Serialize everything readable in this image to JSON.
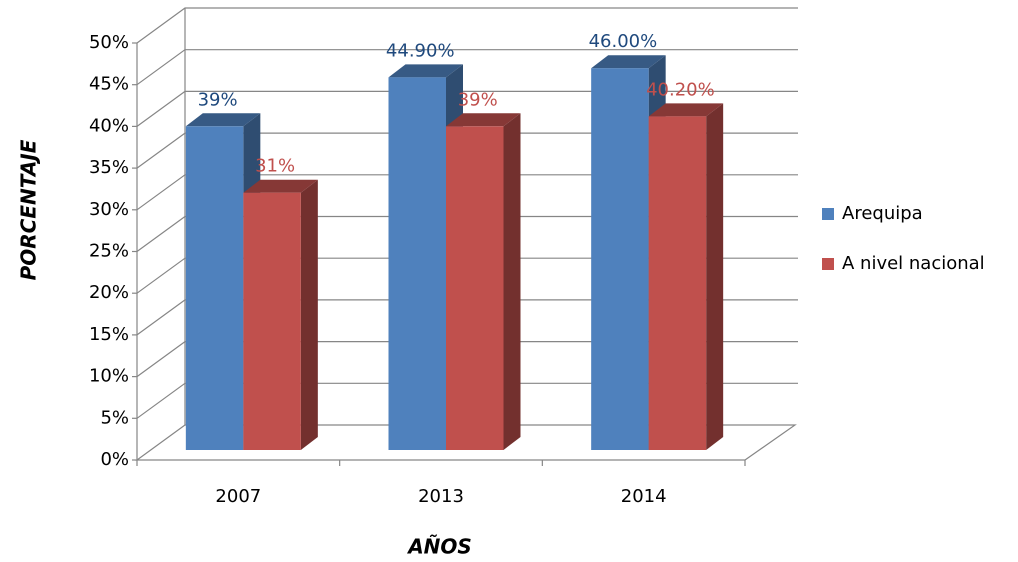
{
  "chart_data": {
    "type": "bar3d",
    "categories": [
      "2007",
      "2013",
      "2014"
    ],
    "series": [
      {
        "name": "Arequipa",
        "color": "#4f81bd",
        "values": [
          39,
          44.9,
          46
        ],
        "value_labels": [
          "39%",
          "44.90%",
          "46.00%"
        ],
        "label_color": "#1f497d"
      },
      {
        "name": "A nivel nacional",
        "color": "#c0504d",
        "values": [
          31,
          39,
          40.2
        ],
        "value_labels": [
          "31%",
          "39%",
          "40.20%"
        ],
        "label_color": "#c0504d"
      }
    ],
    "ylim": [
      0,
      50
    ],
    "yticks": [
      {
        "value": 0,
        "label": "0%"
      },
      {
        "value": 5,
        "label": "5%"
      },
      {
        "value": 10,
        "label": "10%"
      },
      {
        "value": 15,
        "label": "15%"
      },
      {
        "value": 20,
        "label": "20%"
      },
      {
        "value": 25,
        "label": "25%"
      },
      {
        "value": 30,
        "label": "30%"
      },
      {
        "value": 35,
        "label": "35%"
      },
      {
        "value": 40,
        "label": "40%"
      },
      {
        "value": 45,
        "label": "45%"
      },
      {
        "value": 50,
        "label": "50%"
      }
    ],
    "y_label": "PORCENTAJE",
    "x_label": "AÑOS",
    "grid": true,
    "legend": "right"
  }
}
